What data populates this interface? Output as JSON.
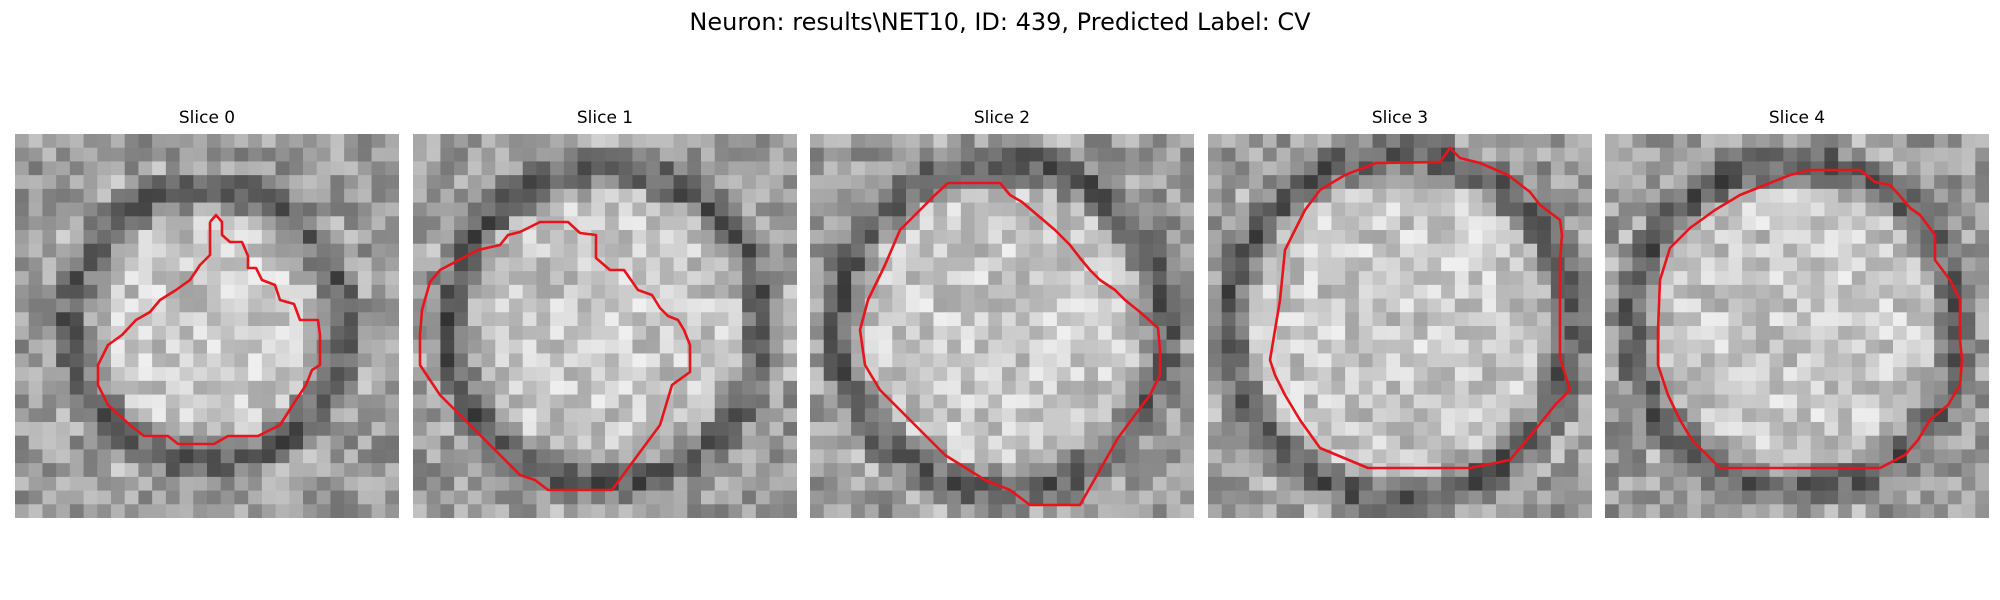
{
  "figure": {
    "title": "Neuron: results\\NET10, ID: 439, Predicted Label: CV"
  },
  "panels": [
    {
      "label": "Slice 0"
    },
    {
      "label": "Slice 1"
    },
    {
      "label": "Slice 2"
    },
    {
      "label": "Slice 3"
    },
    {
      "label": "Slice 4"
    }
  ],
  "colors": {
    "contour": "#e8141b",
    "background": "#ffffff"
  }
}
